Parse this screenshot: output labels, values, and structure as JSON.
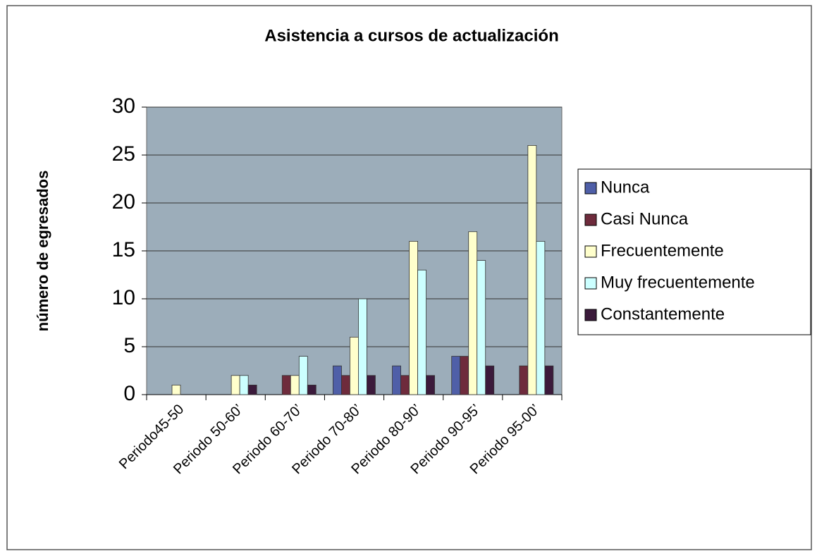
{
  "chart_data": {
    "type": "bar",
    "title": "Asistencia a cursos de actualización",
    "y_label": "número de egresados",
    "categories": [
      "Periodo45-50",
      "Periodo 50-60’",
      "Periodo 60-70’",
      "Periodo 70-80’",
      "Periodo 80-90’",
      "Periodo 90-95’",
      "Periodo 95-00’"
    ],
    "series": [
      {
        "name": "Nunca",
        "color": "#4f5fa8",
        "values": [
          0,
          0,
          0,
          3,
          3,
          4,
          0
        ]
      },
      {
        "name": "Casi Nunca",
        "color": "#6e2b3c",
        "values": [
          0,
          0,
          2,
          2,
          2,
          4,
          3
        ]
      },
      {
        "name": "Frecuentemente",
        "color": "#ffffcc",
        "values": [
          1,
          2,
          2,
          6,
          16,
          17,
          26
        ]
      },
      {
        "name": "Muy frecuentemente",
        "color": "#ccffff",
        "values": [
          0,
          2,
          4,
          10,
          13,
          14,
          16
        ]
      },
      {
        "name": "Constantemente",
        "color": "#3b1a3b",
        "values": [
          0,
          1,
          1,
          2,
          2,
          3,
          3
        ]
      }
    ],
    "ylim": [
      0,
      30
    ],
    "yticks": [
      0,
      5,
      10,
      15,
      20,
      25,
      30
    ],
    "grid": true,
    "legend": "right"
  }
}
